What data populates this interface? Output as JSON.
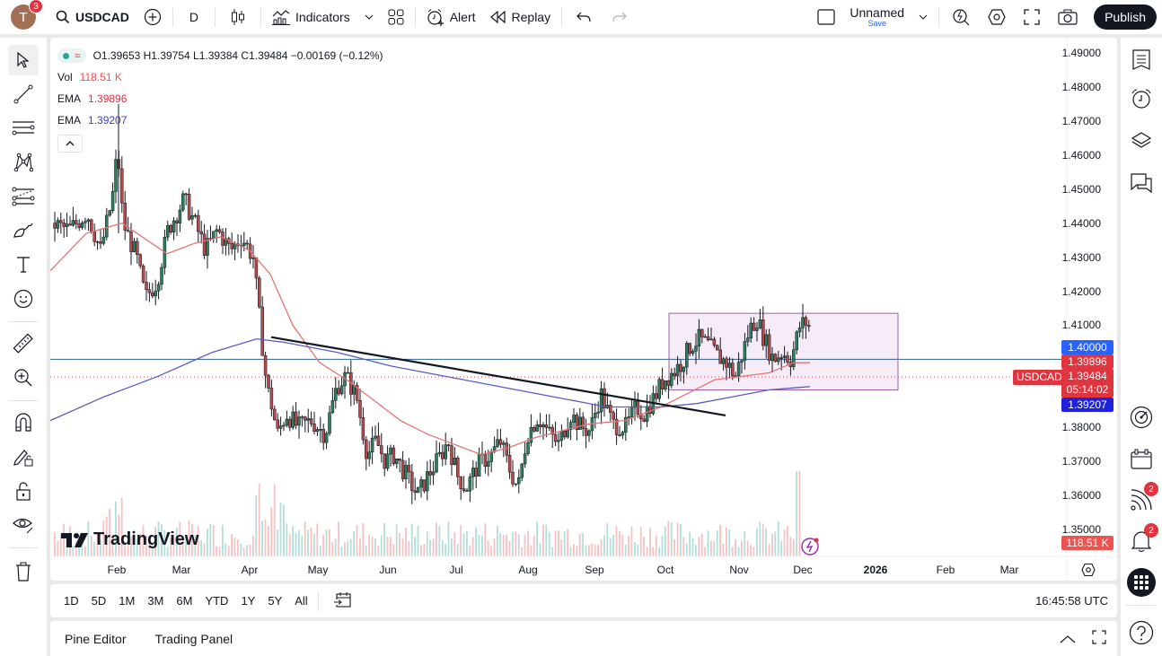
{
  "topbar": {
    "avatar_letter": "T",
    "avatar_badge": "3",
    "symbol": "USDCAD",
    "interval": "D",
    "indicators_label": "Indicators",
    "alert_label": "Alert",
    "replay_label": "Replay",
    "layout_name": "Unnamed",
    "save_label": "Save",
    "publish_label": "Publish"
  },
  "legend": {
    "ohlc": "O1.39653 H1.39754 L1.39384 C1.39484 −0.00169 (−0.12%)",
    "vol_label": "Vol",
    "vol_value": "118.51 K",
    "ema1_label": "EMA",
    "ema1_value": "1.39896",
    "ema2_label": "EMA",
    "ema2_value": "1.39207",
    "colors": {
      "vol": "#ef5350",
      "ema1": "#e0343f",
      "ema2": "#3f3fb5"
    }
  },
  "price_axis": {
    "labels": [
      "1.49000",
      "1.48000",
      "1.47000",
      "1.46000",
      "1.45000",
      "1.44000",
      "1.43000",
      "1.42000",
      "1.41000",
      "1.38000",
      "1.37000",
      "1.36000",
      "1.35000"
    ],
    "tags": {
      "horizontal_line": "1.40000",
      "ema1": "1.39896",
      "last_price": "1.39484",
      "countdown": "05:14:02",
      "ema2": "1.39207",
      "volume": "118.51 K",
      "symbol_tag": "USDCAD"
    },
    "colors": {
      "hline": "#2962ff",
      "ema1": "#e0343f",
      "last": "#e0343f",
      "ema2": "#1e22dd",
      "volume": "#ef5350"
    }
  },
  "time_axis": {
    "labels": [
      "Feb",
      "Mar",
      "Apr",
      "May",
      "Jun",
      "Jul",
      "Aug",
      "Sep",
      "Oct",
      "Nov",
      "Dec",
      "2026",
      "Feb",
      "Mar"
    ]
  },
  "watermark": "TradingView",
  "bottombar": {
    "ranges": [
      "1D",
      "5D",
      "1M",
      "3M",
      "6M",
      "YTD",
      "1Y",
      "5Y",
      "All"
    ],
    "clock": "16:45:58 UTC"
  },
  "footer": {
    "tabs": [
      "Pine Editor",
      "Trading Panel"
    ]
  },
  "right_toolbar": {
    "ideas_badge": "2",
    "notifications_badge": "2"
  },
  "chart_data": {
    "type": "candlestick",
    "symbol": "USDCAD",
    "interval": "1D",
    "ylim": [
      1.348,
      1.493
    ],
    "y_ticks": [
      1.35,
      1.36,
      1.37,
      1.38,
      1.39,
      1.4,
      1.41,
      1.42,
      1.43,
      1.44,
      1.45,
      1.46,
      1.47,
      1.48,
      1.49
    ],
    "x_ticks": [
      "Feb",
      "Mar",
      "Apr",
      "May",
      "Jun",
      "Jul",
      "Aug",
      "Sep",
      "Oct",
      "Nov",
      "Dec",
      "2026",
      "Feb",
      "Mar"
    ],
    "last": {
      "open": 1.39653,
      "high": 1.39754,
      "low": 1.39384,
      "close": 1.39484,
      "change": -0.00169,
      "change_pct": -0.12,
      "volume": "118.51K"
    },
    "indicators": [
      {
        "name": "EMA (fast)",
        "value": 1.39896,
        "color": "#e57373"
      },
      {
        "name": "EMA (slow)",
        "value": 1.39207,
        "color": "#5c5cc0"
      }
    ],
    "drawings": [
      {
        "type": "horizontal_line",
        "price": 1.4
      },
      {
        "type": "trend_line",
        "from": [
          "Apr",
          1.4065
        ],
        "to": [
          "Oct",
          1.3835
        ]
      },
      {
        "type": "rectangle",
        "top": 1.4135,
        "bottom": 1.391,
        "from": "Oct",
        "to": "Dec"
      }
    ],
    "monthly_closes_approx": {
      "Jan": 1.438,
      "Feb": 1.445,
      "Mar": 1.431,
      "Apr": 1.383,
      "May": 1.378,
      "Jun": 1.365,
      "Jul": 1.38,
      "Aug": 1.376,
      "Sep": 1.392,
      "Oct": 1.4,
      "Nov": 1.405,
      "Dec": 1.395
    }
  }
}
